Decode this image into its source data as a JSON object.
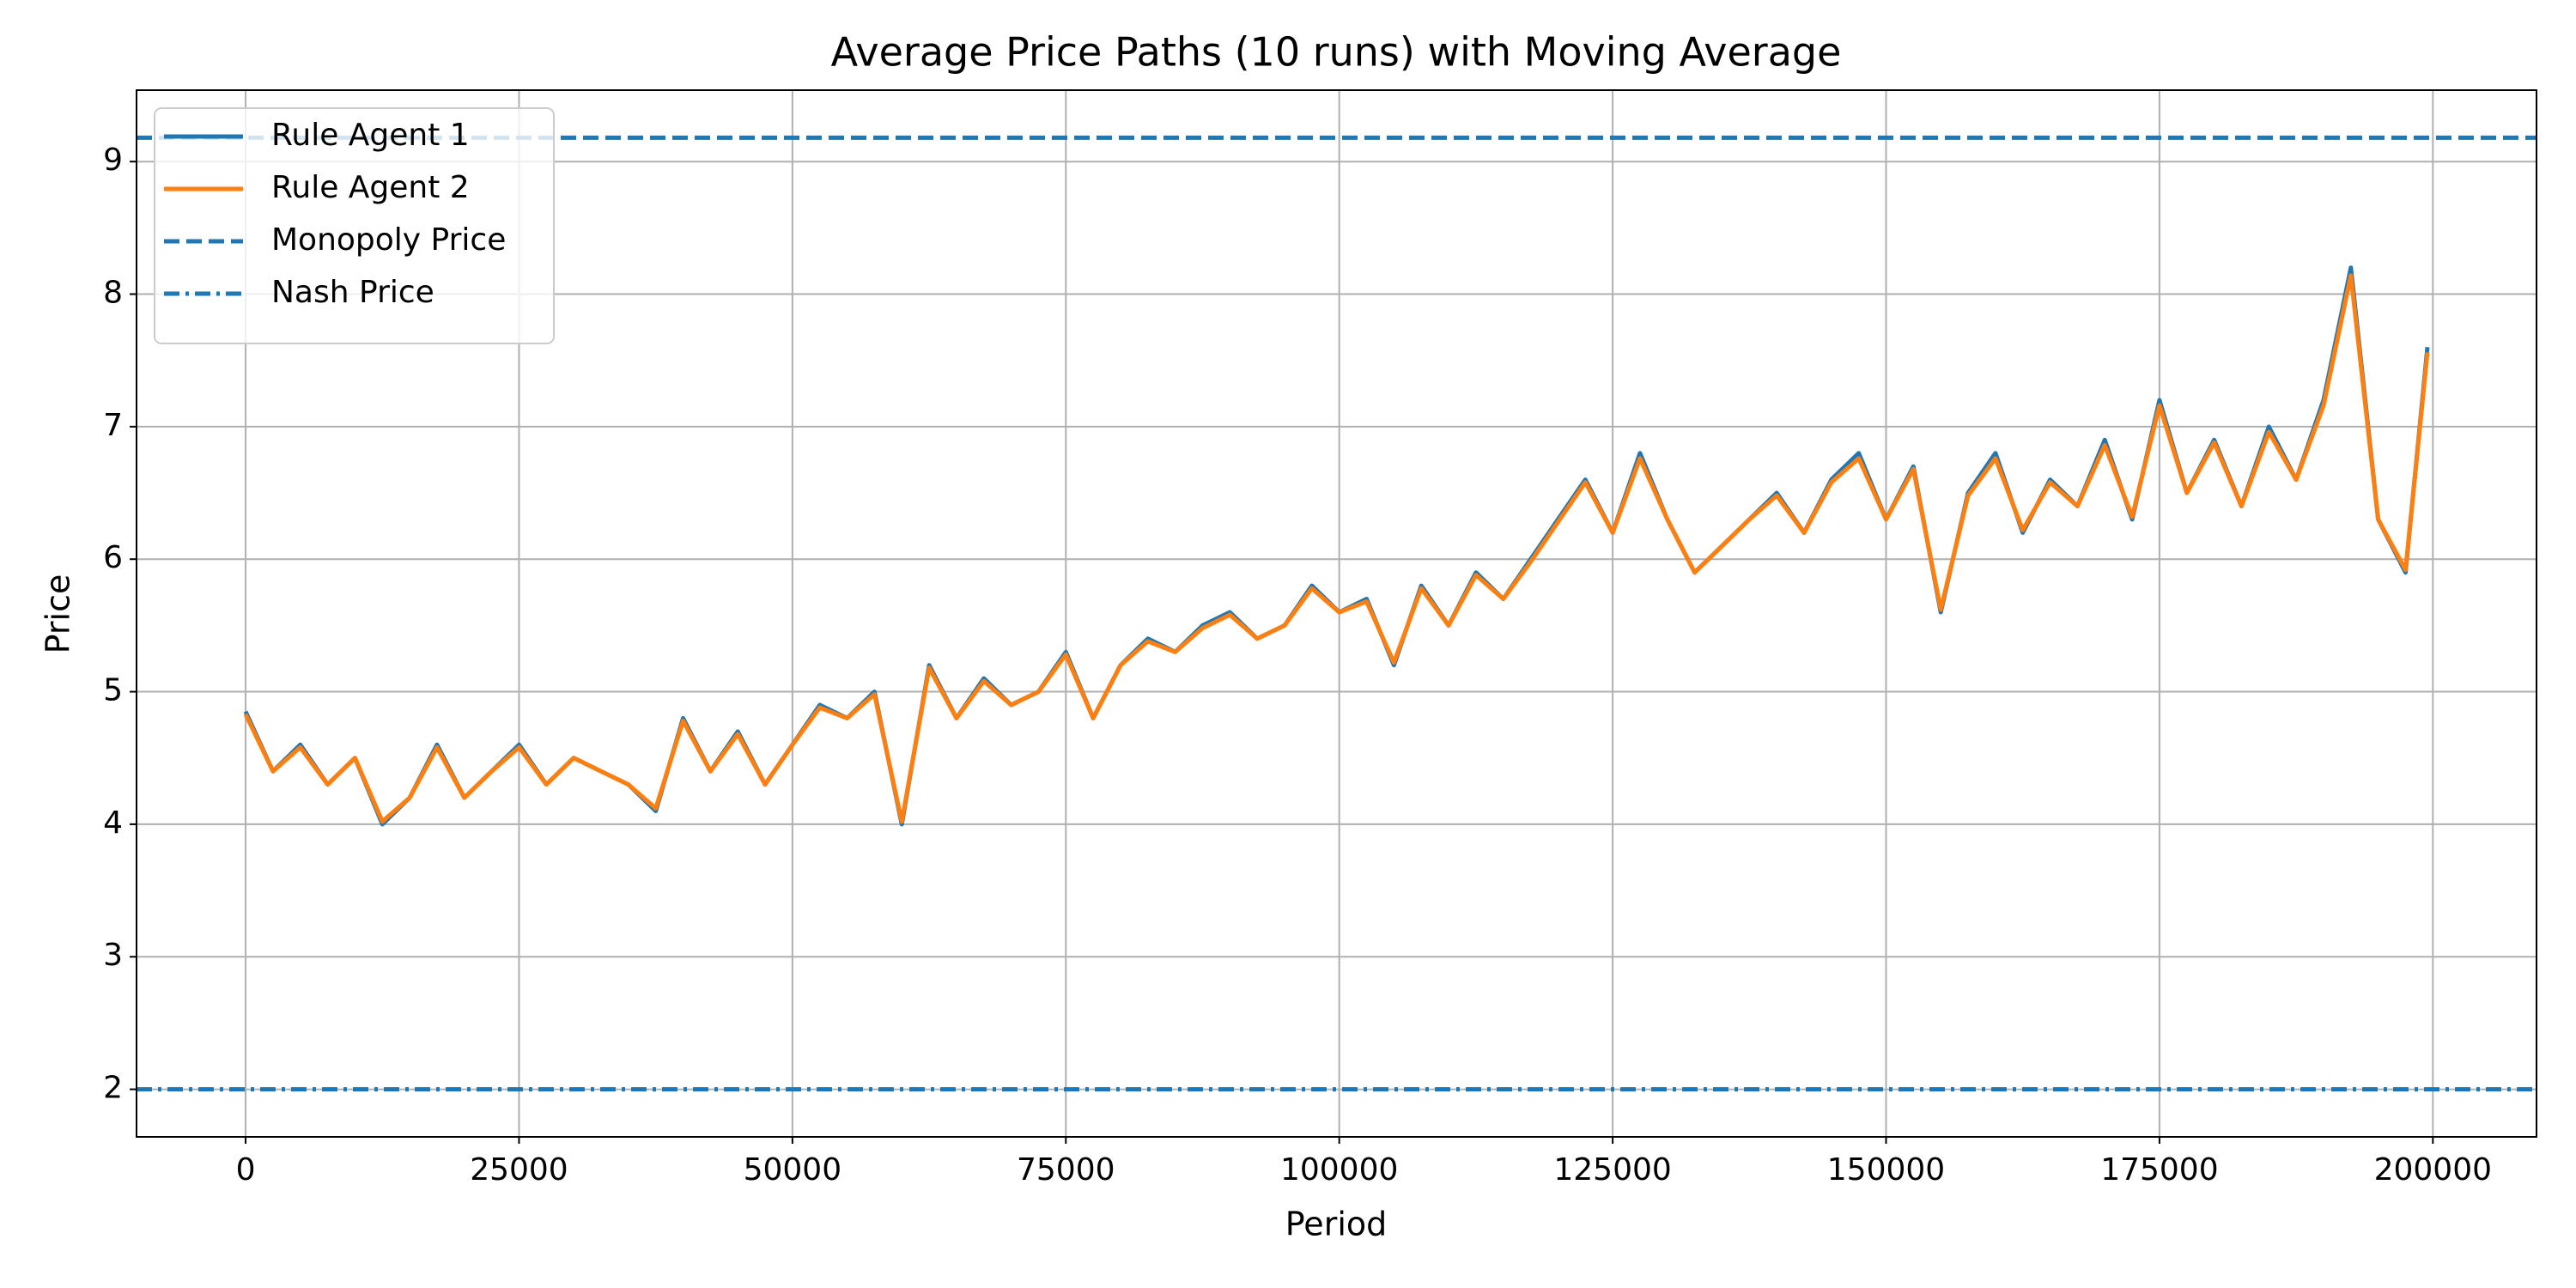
{
  "chart_data": {
    "type": "line",
    "title": "Average Price Paths (10 runs) with Moving Average",
    "x_label": "Period",
    "y_label": "Price",
    "x": [
      0,
      2500,
      5000,
      7500,
      10000,
      12500,
      15000,
      17500,
      20000,
      22500,
      25000,
      27500,
      30000,
      32500,
      35000,
      37500,
      40000,
      42500,
      45000,
      47500,
      50000,
      52500,
      55000,
      57500,
      60000,
      62500,
      65000,
      67500,
      70000,
      72500,
      75000,
      77500,
      80000,
      82500,
      85000,
      87500,
      90000,
      92500,
      95000,
      97500,
      100000,
      102500,
      105000,
      107500,
      110000,
      112500,
      115000,
      117500,
      120000,
      122500,
      125000,
      127500,
      130000,
      132500,
      135000,
      137500,
      140000,
      142500,
      145000,
      147500,
      150000,
      152500,
      155000,
      157500,
      160000,
      162500,
      165000,
      167500,
      170000,
      172500,
      175000,
      177500,
      180000,
      182500,
      185000,
      187500,
      190000,
      192500,
      195000,
      197500,
      199500
    ],
    "series": [
      {
        "name": "Rule Agent 1",
        "color": "#1f77b4",
        "values": [
          4.85,
          4.4,
          4.6,
          4.3,
          4.5,
          4.0,
          4.2,
          4.6,
          4.2,
          4.4,
          4.6,
          4.3,
          4.5,
          4.4,
          4.3,
          4.1,
          4.8,
          4.4,
          4.7,
          4.3,
          4.6,
          4.9,
          4.8,
          5.0,
          4.0,
          5.2,
          4.8,
          5.1,
          4.9,
          5.0,
          5.3,
          4.8,
          5.2,
          5.4,
          5.3,
          5.5,
          5.6,
          5.4,
          5.5,
          5.8,
          5.6,
          5.7,
          5.2,
          5.8,
          5.5,
          5.9,
          5.7,
          6.0,
          6.3,
          6.6,
          6.2,
          6.8,
          6.3,
          5.9,
          6.1,
          6.3,
          6.5,
          6.2,
          6.6,
          6.8,
          6.3,
          6.7,
          5.6,
          6.5,
          6.8,
          6.2,
          6.6,
          6.4,
          6.9,
          6.3,
          7.2,
          6.5,
          6.9,
          6.4,
          7.0,
          6.6,
          7.2,
          8.2,
          6.3,
          5.9,
          7.6
        ]
      },
      {
        "name": "Rule Agent 2",
        "color": "#ff7f0e",
        "values": [
          4.83,
          4.4,
          4.58,
          4.3,
          4.5,
          4.02,
          4.2,
          4.58,
          4.2,
          4.4,
          4.58,
          4.3,
          4.5,
          4.4,
          4.3,
          4.12,
          4.78,
          4.4,
          4.68,
          4.3,
          4.6,
          4.88,
          4.8,
          4.98,
          4.02,
          5.18,
          4.8,
          5.08,
          4.9,
          5.0,
          5.28,
          4.8,
          5.2,
          5.38,
          5.3,
          5.48,
          5.58,
          5.4,
          5.5,
          5.78,
          5.6,
          5.68,
          5.22,
          5.78,
          5.5,
          5.88,
          5.7,
          5.98,
          6.28,
          6.58,
          6.2,
          6.76,
          6.3,
          5.9,
          6.1,
          6.3,
          6.48,
          6.2,
          6.58,
          6.76,
          6.3,
          6.68,
          5.62,
          6.48,
          6.76,
          6.22,
          6.58,
          6.4,
          6.86,
          6.32,
          7.16,
          6.5,
          6.88,
          6.4,
          6.96,
          6.6,
          7.16,
          8.14,
          6.3,
          5.92,
          7.56
        ]
      }
    ],
    "reference_lines": [
      {
        "name": "Monopoly Price",
        "value": 9.18,
        "color": "#1f77b4",
        "style": "dashed"
      },
      {
        "name": "Nash Price",
        "value": 2,
        "color": "#1f77b4",
        "style": "dashdot"
      }
    ],
    "xlim": [
      -9975,
      209475
    ],
    "ylim": [
      1.641,
      9.539
    ],
    "xticks": [
      0,
      25000,
      50000,
      75000,
      100000,
      125000,
      150000,
      175000,
      200000
    ],
    "yticks": [
      2,
      3,
      4,
      5,
      6,
      7,
      8,
      9
    ],
    "grid": true,
    "legend": "upper left"
  }
}
